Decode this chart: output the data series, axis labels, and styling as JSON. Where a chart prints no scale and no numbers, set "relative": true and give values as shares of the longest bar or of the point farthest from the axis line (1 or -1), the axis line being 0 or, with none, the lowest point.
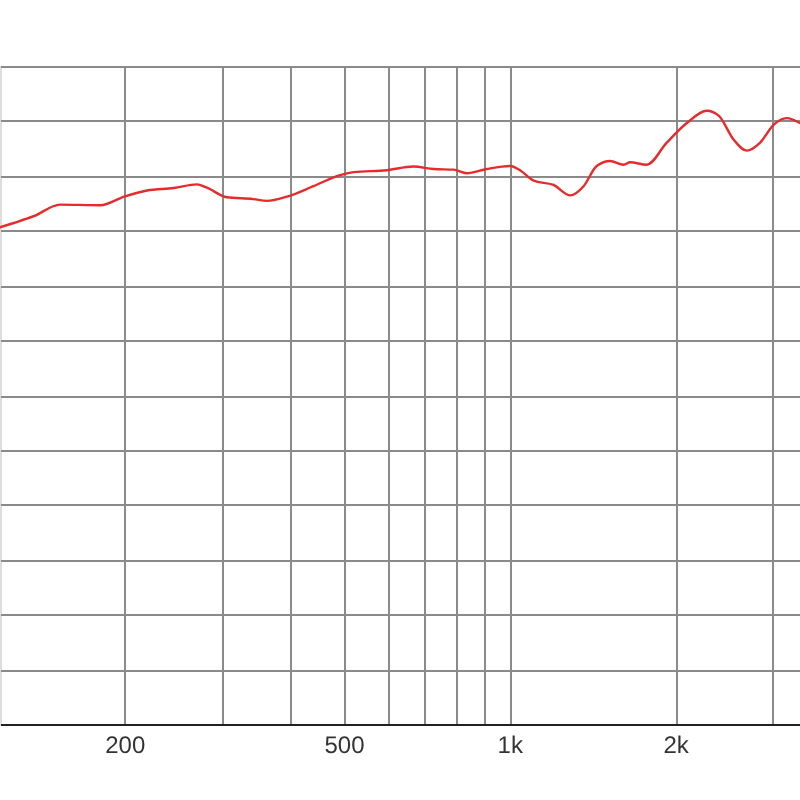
{
  "chart_data": {
    "type": "line",
    "relative": true,
    "log": "x",
    "grid": true,
    "xlim": [
      119,
      3370
    ],
    "xticks": [
      200,
      {
        "value": 300,
        "label": null
      },
      {
        "value": 400,
        "label": null
      },
      500,
      {
        "value": 600,
        "label": null
      },
      {
        "value": 700,
        "label": null
      },
      {
        "value": 800,
        "label": null
      },
      {
        "value": 900,
        "label": null
      },
      {
        "value": 1000,
        "label": "1k"
      },
      {
        "value": 2000,
        "label": "2k"
      },
      {
        "value": 3000,
        "label": null
      }
    ],
    "x": [
      119,
      126,
      137,
      153,
      181,
      200,
      220,
      246,
      271,
      282,
      307,
      343,
      363,
      395,
      441,
      493,
      522,
      599,
      670,
      729,
      792,
      837,
      910,
      1004,
      1046,
      1107,
      1203,
      1290,
      1364,
      1441,
      1524,
      1612,
      1657,
      1776,
      1931,
      2100,
      2283,
      2399,
      2553,
      2698,
      2853,
      3017,
      3188,
      3370
    ],
    "series": [
      {
        "color": "#e52b2b",
        "values": [
          0.81,
          0.817,
          0.828,
          0.847,
          0.846,
          0.86,
          0.87,
          0.874,
          0.88,
          0.875,
          0.859,
          0.856,
          0.853,
          0.86,
          0.877,
          0.895,
          0.9,
          0.903,
          0.909,
          0.905,
          0.904,
          0.898,
          0.905,
          0.91,
          0.903,
          0.886,
          0.879,
          0.862,
          0.877,
          0.91,
          0.918,
          0.912,
          0.916,
          0.912,
          0.948,
          0.98,
          1.0,
          0.992,
          0.953,
          0.935,
          0.948,
          0.977,
          0.988,
          0.98
        ]
      }
    ]
  }
}
